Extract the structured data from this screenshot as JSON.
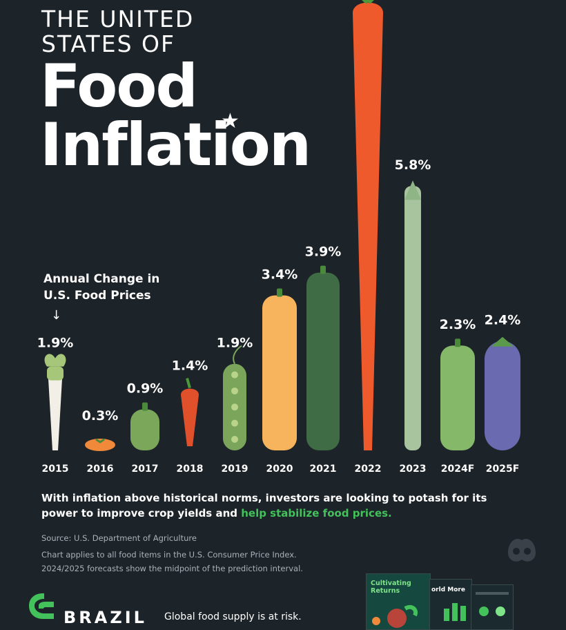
{
  "title": {
    "line1": "THE UNITED",
    "line2": "STATES OF",
    "line3": "Food",
    "line4": "Inflation"
  },
  "annotation": {
    "line1": "Annual Change in",
    "line2": "U.S. Food Prices"
  },
  "chart_data": {
    "type": "bar",
    "title": "The United States of Food Inflation",
    "ylabel": "Annual Change in U.S. Food Prices",
    "categories": [
      "2015",
      "2016",
      "2017",
      "2018",
      "2019",
      "2020",
      "2021",
      "2022",
      "2023",
      "2024F",
      "2025F"
    ],
    "values": [
      1.9,
      0.3,
      0.9,
      1.4,
      1.9,
      3.4,
      3.9,
      9.9,
      5.8,
      2.3,
      2.4
    ],
    "labels": [
      "1.9%",
      "0.3%",
      "0.9%",
      "1.4%",
      "1.9%",
      "3.4%",
      "3.9%",
      "",
      "5.8%",
      "2.3%",
      "2.4%"
    ],
    "vegetables": [
      "radish",
      "tomato",
      "pear",
      "chili-pepper",
      "pea-pod",
      "squash",
      "zucchini",
      "carrot",
      "asparagus",
      "pickle",
      "eggplant"
    ],
    "colors": [
      "#f1efe6",
      "#f08a3a",
      "#7aa75a",
      "#e0502a",
      "#7ba55a",
      "#f8b45c",
      "#3f6b45",
      "#ef5a2c",
      "#a8c49e",
      "#86b86a",
      "#6a6ab0"
    ]
  },
  "footer": {
    "text_main": "With inflation above historical norms, investors are looking to potash for its power to improve crop yields and ",
    "text_highlight": "help stabilize food prices.",
    "source": "Source: U.S. Department of Agriculture",
    "note1": "Chart applies to all food items in the U.S. Consumer Price Index.",
    "note2": "2024/2025 forecasts show the midpoint of the prediction interval."
  },
  "bottom": {
    "brand": "BRAZIL",
    "tagline": "Global food supply is at risk.",
    "book1_title": "Cultivating Returns",
    "book2_title": "orld More"
  }
}
